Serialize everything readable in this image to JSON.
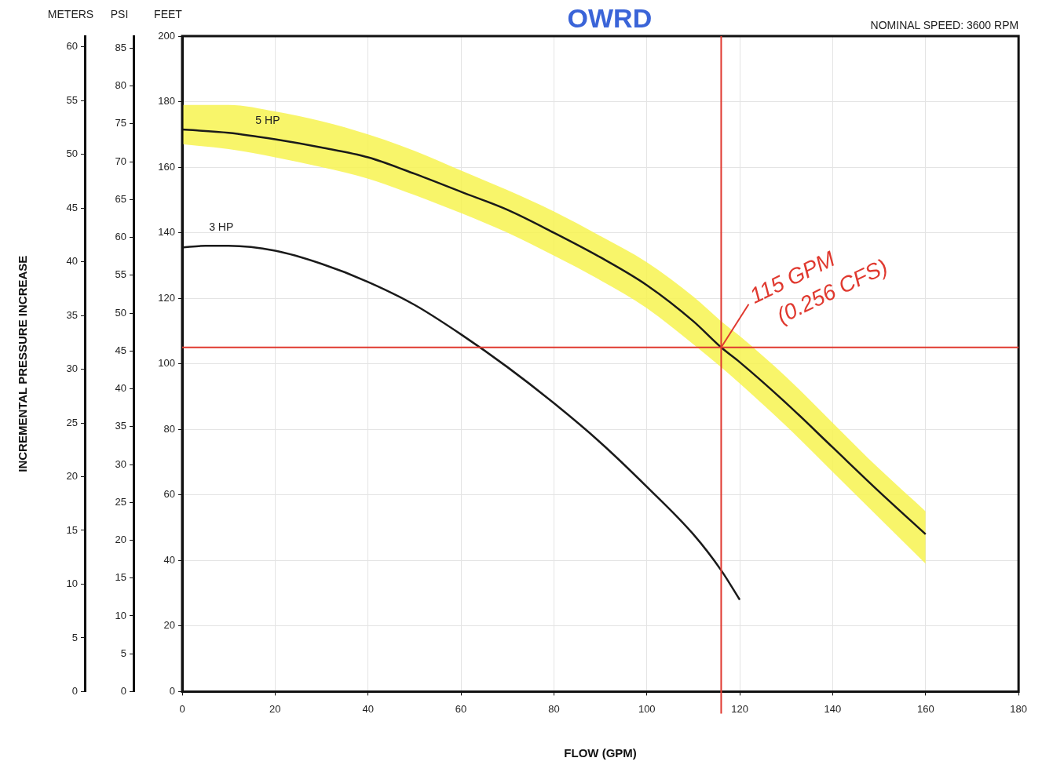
{
  "chart_data": {
    "type": "line",
    "title": "NOMINAL SPEED: 3600 RPM",
    "xlabel": "FLOW (GPM)",
    "ylabel": "FEET",
    "y2label": "METERS",
    "y3label": "PSI",
    "annotations": [
      "INCREMENTAL PRESSURE INCREASE",
      "OWRD",
      {
        "text": "115 GPM\n(0.256 CFS)",
        "x": 116,
        "y": 105
      }
    ],
    "series": [
      {
        "name": "5 HP",
        "color": "#1a1a1a",
        "x": [
          0,
          10,
          20,
          30,
          40,
          50,
          60,
          70,
          80,
          90,
          100,
          110,
          116,
          120,
          130,
          140,
          150,
          160
        ],
        "values": [
          171.5,
          170.5,
          168.5,
          166,
          163,
          158,
          152.5,
          147,
          140,
          132.5,
          124,
          113,
          105,
          100.5,
          88,
          74.5,
          61,
          48
        ],
        "lower": [
          167,
          165.5,
          163,
          160,
          156.5,
          151.5,
          146,
          140,
          133,
          125.5,
          117,
          106,
          99,
          94,
          81,
          67,
          53,
          39
        ],
        "upper": [
          179,
          179,
          177,
          174,
          170,
          165,
          159,
          153,
          146.5,
          139,
          131,
          120.5,
          113,
          108.5,
          96,
          82,
          68,
          55
        ]
      },
      {
        "name": "3 HP",
        "color": "#1a1a1a",
        "x": [
          0,
          5,
          10,
          20,
          30,
          40,
          50,
          60,
          70,
          80,
          90,
          100,
          110,
          116,
          120
        ],
        "values": [
          135.5,
          136,
          136,
          134.5,
          130.5,
          125,
          118,
          109,
          99,
          88,
          76,
          62.5,
          48,
          37,
          28
        ]
      }
    ],
    "ref_lines": [
      {
        "axis": "y",
        "value": 105,
        "color": "#e0392f"
      },
      {
        "axis": "x",
        "value": 116,
        "color": "#e0392f"
      }
    ],
    "xlim": [
      0,
      180
    ],
    "xticks": [
      0,
      20,
      40,
      60,
      80,
      100,
      120,
      140,
      160,
      180
    ],
    "ylim": [
      0,
      200
    ],
    "yticks": [
      0,
      20,
      40,
      60,
      80,
      100,
      120,
      140,
      160,
      180,
      200
    ],
    "y2lim": [
      0,
      61
    ],
    "y2ticks": [
      0,
      5,
      10,
      15,
      20,
      25,
      30,
      35,
      40,
      45,
      50,
      55,
      60
    ],
    "y3lim": [
      0,
      86.6
    ],
    "y3ticks": [
      0,
      5,
      10,
      15,
      20,
      25,
      30,
      35,
      40,
      45,
      50,
      55,
      60,
      65,
      70,
      75,
      80,
      85
    ],
    "grid": true,
    "legend": false,
    "marker": "none",
    "line_style": "solid"
  }
}
